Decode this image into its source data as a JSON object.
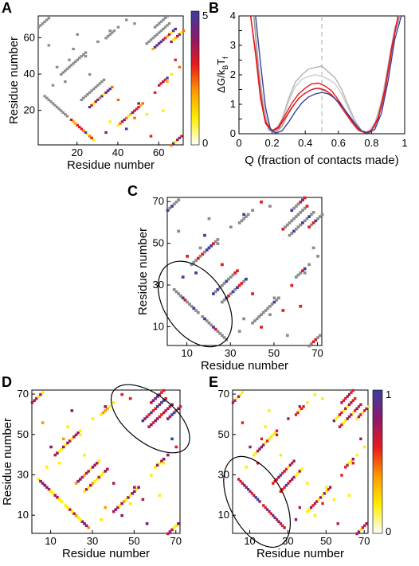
{
  "panel_labels": [
    "A",
    "B",
    "C",
    "D",
    "E"
  ],
  "chart_data": [
    {
      "panel": "A",
      "type": "heatmap",
      "xlabel": "Residue number",
      "ylabel": "Residue number",
      "xticks": [
        20,
        40,
        60
      ],
      "yticks": [
        20,
        40,
        60
      ],
      "xlim": [
        1,
        72
      ],
      "ylim": [
        1,
        72
      ],
      "colorbar": {
        "ticks": [
          "0",
          "5"
        ],
        "range": [
          0,
          5
        ],
        "colors": [
          "#ffffff",
          "#ffee00",
          "#ff9900",
          "#e8191e",
          "#8b1a6b",
          "#3b3f9f"
        ]
      }
    },
    {
      "panel": "B",
      "type": "line",
      "xlabel": "Q (fraction of contacts made)",
      "ylabel": "ΔG/kBTf",
      "ylabel_parts": {
        "main": "ΔG/k",
        "sub1": "B",
        "mid": "T",
        "sub2": "f"
      },
      "xlim": [
        0,
        1
      ],
      "ylim": [
        0,
        4
      ],
      "xticks": [
        "0",
        "0.2",
        "0.4",
        "0.6",
        "0.8",
        "1"
      ],
      "yticks": [
        "0",
        "0.5",
        "1",
        "1.5",
        "2",
        "2.5",
        "3",
        "3.5",
        "4"
      ],
      "dashed_line_x": 0.5,
      "series": [
        {
          "color": "#b3b3b3",
          "x": [
            0.09,
            0.12,
            0.15,
            0.18,
            0.22,
            0.26,
            0.3,
            0.34,
            0.38,
            0.42,
            0.46,
            0.5,
            0.54,
            0.58,
            0.62,
            0.66,
            0.7,
            0.74,
            0.78,
            0.82,
            0.86,
            0.9,
            0.94,
            0.97
          ],
          "y": [
            4,
            2.2,
            0.9,
            0.2,
            0.1,
            0.5,
            1.2,
            1.75,
            2.0,
            2.2,
            2.25,
            2.3,
            2.1,
            1.9,
            1.5,
            0.95,
            0.45,
            0.1,
            0.05,
            0.35,
            1.1,
            2.3,
            3.6,
            4
          ]
        },
        {
          "color": "#cccccc",
          "x": [
            0.09,
            0.12,
            0.15,
            0.18,
            0.22,
            0.26,
            0.3,
            0.34,
            0.38,
            0.42,
            0.46,
            0.5,
            0.54,
            0.58,
            0.62,
            0.66,
            0.7,
            0.74,
            0.78,
            0.82,
            0.86,
            0.9,
            0.94,
            0.97
          ],
          "y": [
            4,
            2.1,
            0.8,
            0.15,
            0.08,
            0.45,
            1.1,
            1.6,
            1.85,
            1.95,
            2.0,
            1.95,
            1.85,
            1.7,
            1.35,
            0.85,
            0.4,
            0.1,
            0.05,
            0.3,
            1.0,
            2.2,
            3.5,
            4
          ]
        },
        {
          "color": "#999999",
          "x": [
            0.09,
            0.12,
            0.15,
            0.18,
            0.22,
            0.26,
            0.3,
            0.34,
            0.38,
            0.42,
            0.46,
            0.5,
            0.54,
            0.58,
            0.62,
            0.66,
            0.7,
            0.74,
            0.78,
            0.82,
            0.86,
            0.9,
            0.94,
            0.97
          ],
          "y": [
            4,
            2.0,
            0.7,
            0.12,
            0.05,
            0.25,
            0.7,
            1.05,
            1.3,
            1.45,
            1.55,
            1.5,
            1.4,
            1.2,
            0.95,
            0.6,
            0.3,
            0.08,
            0.03,
            0.25,
            0.9,
            2.1,
            3.4,
            4
          ]
        },
        {
          "color": "#e8191e",
          "x": [
            0.07,
            0.1,
            0.13,
            0.16,
            0.2,
            0.24,
            0.28,
            0.32,
            0.36,
            0.4,
            0.44,
            0.48,
            0.52,
            0.56,
            0.6,
            0.64,
            0.68,
            0.72,
            0.76,
            0.8,
            0.84,
            0.88,
            0.92,
            0.96
          ],
          "y": [
            4,
            2.8,
            1.3,
            0.4,
            0.1,
            0.25,
            0.65,
            1.05,
            1.35,
            1.55,
            1.7,
            1.72,
            1.62,
            1.45,
            1.15,
            0.8,
            0.45,
            0.15,
            0.04,
            0.12,
            0.55,
            1.5,
            2.9,
            4
          ]
        },
        {
          "color": "#e8191e",
          "x": [
            0.07,
            0.1,
            0.13,
            0.16,
            0.2,
            0.24,
            0.28,
            0.32,
            0.36,
            0.4,
            0.44,
            0.48,
            0.52,
            0.56,
            0.6,
            0.64,
            0.68,
            0.72,
            0.76,
            0.8,
            0.84,
            0.88,
            0.92,
            0.96
          ],
          "y": [
            4,
            2.7,
            1.2,
            0.35,
            0.08,
            0.2,
            0.55,
            0.9,
            1.2,
            1.38,
            1.5,
            1.55,
            1.48,
            1.32,
            1.05,
            0.72,
            0.4,
            0.12,
            0.03,
            0.1,
            0.5,
            1.4,
            2.8,
            4
          ]
        },
        {
          "color": "#3b3f9f",
          "x": [
            0.1,
            0.13,
            0.16,
            0.19,
            0.22,
            0.26,
            0.3,
            0.34,
            0.38,
            0.42,
            0.46,
            0.5,
            0.54,
            0.58,
            0.62,
            0.66,
            0.7,
            0.74,
            0.78,
            0.82,
            0.86,
            0.9,
            0.94,
            0.98
          ],
          "y": [
            4,
            2.4,
            0.9,
            0.15,
            0.02,
            0.1,
            0.4,
            0.75,
            1.05,
            1.25,
            1.35,
            1.4,
            1.35,
            1.2,
            0.95,
            0.65,
            0.35,
            0.1,
            0.02,
            0.15,
            0.7,
            1.8,
            3.2,
            4
          ]
        }
      ]
    },
    {
      "panel": "C",
      "type": "heatmap",
      "xlabel": "Residue number",
      "ylabel": "Residue number",
      "xticks": [
        10,
        30,
        50,
        70
      ],
      "yticks": [
        10,
        30,
        50,
        70
      ],
      "xlim": [
        1,
        72
      ],
      "ylim": [
        1,
        72
      ],
      "colors": {
        "native": "#8c8c8c",
        "high": "#3b3f9f",
        "low": "#e8191e"
      }
    },
    {
      "panel": "D",
      "type": "heatmap",
      "xlabel": "Residue number",
      "ylabel": "Residue number",
      "xticks": [
        10,
        30,
        50,
        70
      ],
      "yticks": [
        10,
        30,
        50,
        70
      ],
      "xlim": [
        1,
        72
      ],
      "ylim": [
        1,
        72
      ]
    },
    {
      "panel": "E",
      "type": "heatmap",
      "xlabel": "Residue number",
      "ylabel": "",
      "xticks": [
        10,
        30,
        50,
        70
      ],
      "yticks": [
        10,
        30,
        50,
        70
      ],
      "xlim": [
        1,
        72
      ],
      "ylim": [
        1,
        72
      ],
      "colorbar": {
        "ticks": [
          "0",
          "1"
        ],
        "range": [
          0,
          1
        ],
        "colors": [
          "#ffffff",
          "#ffee00",
          "#ff9900",
          "#e8191e",
          "#8b1a6b",
          "#3b3f9f"
        ]
      }
    }
  ]
}
